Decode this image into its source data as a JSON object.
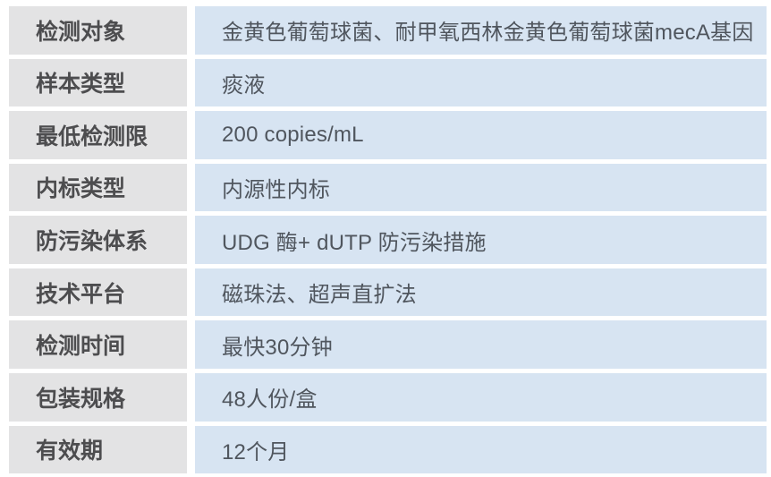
{
  "table": {
    "title": "product-specification-table",
    "columns": [
      "attribute",
      "value"
    ],
    "rows": [
      {
        "label": "检测对象",
        "value": "金黄色葡萄球菌、耐甲氧西林金黄色葡萄球菌mecA基因"
      },
      {
        "label": "样本类型",
        "value": "痰液"
      },
      {
        "label": "最低检测限",
        "value": "200 copies/mL"
      },
      {
        "label": "内标类型",
        "value": "内源性内标"
      },
      {
        "label": "防污染体系",
        "value": "UDG 酶+ dUTP 防污染措施"
      },
      {
        "label": "技术平台",
        "value": "磁珠法、超声直扩法"
      },
      {
        "label": "检测时间",
        "value": "最快30分钟"
      },
      {
        "label": "包装规格",
        "value": "48人份/盒"
      },
      {
        "label": "有效期",
        "value": "12个月"
      }
    ],
    "colors": {
      "label_cell_background": "#e3e3e4",
      "value_cell_background": "#d7e4f2",
      "label_text": "#4d4d4f",
      "value_text": "#50565e",
      "page_background": "#ffffff"
    }
  }
}
